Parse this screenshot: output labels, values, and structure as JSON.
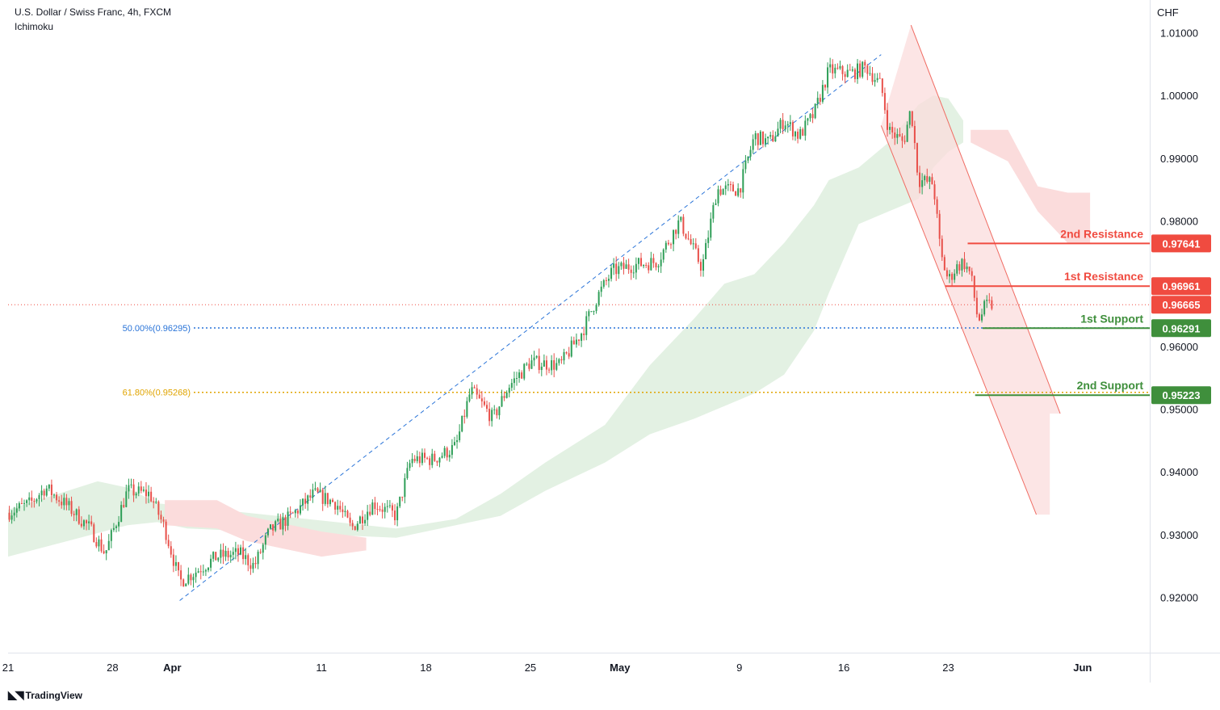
{
  "header": {
    "symbol_line": "U.S. Dollar / Swiss Franc, 4h, FXCM",
    "indicator": "Ichimoku"
  },
  "footer": {
    "brand": "TradingView",
    "logo_icon": "tradingview-logo-icon"
  },
  "colors": {
    "up": "#2e9e57",
    "down": "#e8504a",
    "resistance": "#f04b40",
    "support": "#3f8f3c",
    "fib50": "#2a74d8",
    "fib618": "#e0a400",
    "cloud_bull": "#e3f1e3",
    "cloud_bear": "#fbdcdc",
    "channel": "#f06b62",
    "trend": "#2a74d8"
  },
  "chart_data": {
    "type": "candlestick",
    "currency_label": "CHF",
    "ylim": [
      0.9112,
      1.0152
    ],
    "y_ticks": [
      1.01,
      1.0,
      0.99,
      0.98,
      0.97,
      0.96,
      0.95,
      0.94,
      0.93,
      0.92
    ],
    "y_tick_labels": [
      "1.01000",
      "1.00000",
      "0.99000",
      "0.98000",
      "0.97000",
      "0.96000",
      "0.95000",
      "0.94000",
      "0.93000",
      "0.92000"
    ],
    "x_ticks": [
      {
        "day": 0,
        "label": "21",
        "bold": false
      },
      {
        "day": 7,
        "label": "28",
        "bold": false
      },
      {
        "day": 11,
        "label": "Apr",
        "bold": true
      },
      {
        "day": 21,
        "label": "11",
        "bold": false
      },
      {
        "day": 28,
        "label": "18",
        "bold": false
      },
      {
        "day": 35,
        "label": "25",
        "bold": false
      },
      {
        "day": 41,
        "label": "May",
        "bold": true
      },
      {
        "day": 49,
        "label": "9",
        "bold": false
      },
      {
        "day": 56,
        "label": "16",
        "bold": false
      },
      {
        "day": 63,
        "label": "23",
        "bold": false
      },
      {
        "day": 72,
        "label": "Jun",
        "bold": true
      }
    ],
    "xlim": [
      0,
      76.5
    ],
    "price_path": [
      [
        0,
        0.9335
      ],
      [
        1.5,
        0.935
      ],
      [
        2.5,
        0.9375
      ],
      [
        4,
        0.9345
      ],
      [
        5.5,
        0.931
      ],
      [
        6.5,
        0.927
      ],
      [
        8,
        0.937
      ],
      [
        9.5,
        0.9365
      ],
      [
        10.5,
        0.931
      ],
      [
        11.5,
        0.9225
      ],
      [
        12.5,
        0.924
      ],
      [
        14,
        0.9265
      ],
      [
        15.5,
        0.927
      ],
      [
        16.5,
        0.925
      ],
      [
        17.5,
        0.9305
      ],
      [
        19,
        0.933
      ],
      [
        20.5,
        0.9365
      ],
      [
        22,
        0.935
      ],
      [
        23,
        0.931
      ],
      [
        24.5,
        0.935
      ],
      [
        26,
        0.933
      ],
      [
        27,
        0.942
      ],
      [
        28.5,
        0.942
      ],
      [
        30,
        0.944
      ],
      [
        31,
        0.953
      ],
      [
        32.5,
        0.9485
      ],
      [
        33.5,
        0.9535
      ],
      [
        35,
        0.9575
      ],
      [
        37,
        0.957
      ],
      [
        38.5,
        0.9625
      ],
      [
        39.5,
        0.968
      ],
      [
        40.5,
        0.972
      ],
      [
        42,
        0.973
      ],
      [
        43.5,
        0.9735
      ],
      [
        45,
        0.98
      ],
      [
        46.5,
        0.9725
      ],
      [
        47.5,
        0.985
      ],
      [
        49,
        0.985
      ],
      [
        50,
        0.9935
      ],
      [
        51,
        0.9925
      ],
      [
        52,
        0.996
      ],
      [
        53,
        0.9935
      ],
      [
        54,
        0.997
      ],
      [
        55,
        1.004
      ],
      [
        56.5,
        1.0035
      ],
      [
        57.5,
        1.0045
      ],
      [
        58.5,
        1.0015
      ],
      [
        59,
        0.9945
      ],
      [
        60,
        0.9925
      ],
      [
        60.5,
        0.998
      ],
      [
        61,
        0.9865
      ],
      [
        62,
        0.986
      ],
      [
        62.5,
        0.9745
      ],
      [
        63,
        0.9705
      ],
      [
        63.5,
        0.9725
      ],
      [
        64,
        0.9735
      ],
      [
        64.5,
        0.9715
      ],
      [
        65,
        0.964
      ],
      [
        65.5,
        0.9665
      ],
      [
        66,
        0.9666
      ]
    ],
    "ichimoku_bull_top": [
      [
        0,
        0.934
      ],
      [
        4,
        0.937
      ],
      [
        6,
        0.9385
      ],
      [
        8,
        0.9375
      ],
      [
        10,
        0.935
      ],
      [
        26,
        0.931
      ],
      [
        30,
        0.9325
      ],
      [
        33,
        0.9365
      ],
      [
        36,
        0.9415
      ],
      [
        40,
        0.9475
      ],
      [
        43,
        0.957
      ],
      [
        46,
        0.9645
      ],
      [
        48,
        0.97
      ],
      [
        50,
        0.9715
      ],
      [
        52,
        0.9765
      ],
      [
        54,
        0.9825
      ],
      [
        55,
        0.9865
      ],
      [
        57,
        0.9885
      ],
      [
        59,
        0.9925
      ],
      [
        61,
        0.9985
      ],
      [
        62,
        1.0
      ],
      [
        63,
        0.9995
      ],
      [
        64,
        0.996
      ]
    ],
    "ichimoku_bull_bottom": [
      [
        0,
        0.9265
      ],
      [
        4,
        0.929
      ],
      [
        8,
        0.9315
      ],
      [
        10,
        0.932
      ],
      [
        12,
        0.931
      ],
      [
        26,
        0.9295
      ],
      [
        30,
        0.9315
      ],
      [
        33,
        0.933
      ],
      [
        36,
        0.937
      ],
      [
        40,
        0.9415
      ],
      [
        43,
        0.946
      ],
      [
        46,
        0.9485
      ],
      [
        48,
        0.9505
      ],
      [
        50,
        0.9525
      ],
      [
        52,
        0.9555
      ],
      [
        54,
        0.9625
      ],
      [
        55,
        0.9685
      ],
      [
        57,
        0.9795
      ],
      [
        59,
        0.9815
      ],
      [
        61,
        0.9835
      ],
      [
        62,
        0.9885
      ],
      [
        63,
        0.991
      ],
      [
        64,
        0.9925
      ]
    ],
    "ichimoku_bear_top": [
      [
        10.5,
        0.9355
      ],
      [
        14,
        0.9355
      ],
      [
        16,
        0.933
      ],
      [
        18,
        0.932
      ],
      [
        21,
        0.9305
      ],
      [
        24,
        0.9295
      ],
      [
        64.5,
        0.9945
      ],
      [
        67,
        0.9945
      ],
      [
        69,
        0.9855
      ],
      [
        71,
        0.9845
      ],
      [
        72.5,
        0.9845
      ]
    ],
    "ichimoku_bear_bottom": [
      [
        10.5,
        0.9315
      ],
      [
        14,
        0.931
      ],
      [
        16,
        0.929
      ],
      [
        18,
        0.928
      ],
      [
        21,
        0.9265
      ],
      [
        24,
        0.9275
      ],
      [
        64.5,
        0.9925
      ],
      [
        67,
        0.9895
      ],
      [
        69,
        0.9815
      ],
      [
        71,
        0.9765
      ],
      [
        72.5,
        0.9765
      ]
    ],
    "trendline": {
      "from": [
        11.5,
        0.9195
      ],
      "to": [
        58.5,
        1.0065
      ]
    },
    "fib_levels": [
      {
        "label": "50.00%(0.96295)",
        "value": 0.96295
      },
      {
        "label": "61.80%(0.95268)",
        "value": 0.95268
      }
    ],
    "current_price": {
      "value": 0.96665,
      "label": "0.96665"
    },
    "levels": [
      {
        "name": "2nd Resistance",
        "value": 0.97641,
        "label": "0.97641",
        "kind": "resistance",
        "from_day": 64.3
      },
      {
        "name": "1st Resistance",
        "value": 0.96961,
        "label": "0.96961",
        "kind": "resistance",
        "from_day": 62.8
      },
      {
        "name": "1st Support",
        "value": 0.96291,
        "label": "0.96291",
        "kind": "support",
        "from_day": 65.3
      },
      {
        "name": "2nd Support",
        "value": 0.95223,
        "label": "0.95223",
        "kind": "support",
        "from_day": 64.8
      }
    ],
    "channel": {
      "upper": [
        [
          60.5,
          1.0112
        ],
        [
          70.5,
          0.9493
        ]
      ],
      "lower": [
        [
          58.5,
          0.9952
        ],
        [
          68.9,
          0.9332
        ]
      ],
      "shade_right_day": 69.8
    }
  }
}
